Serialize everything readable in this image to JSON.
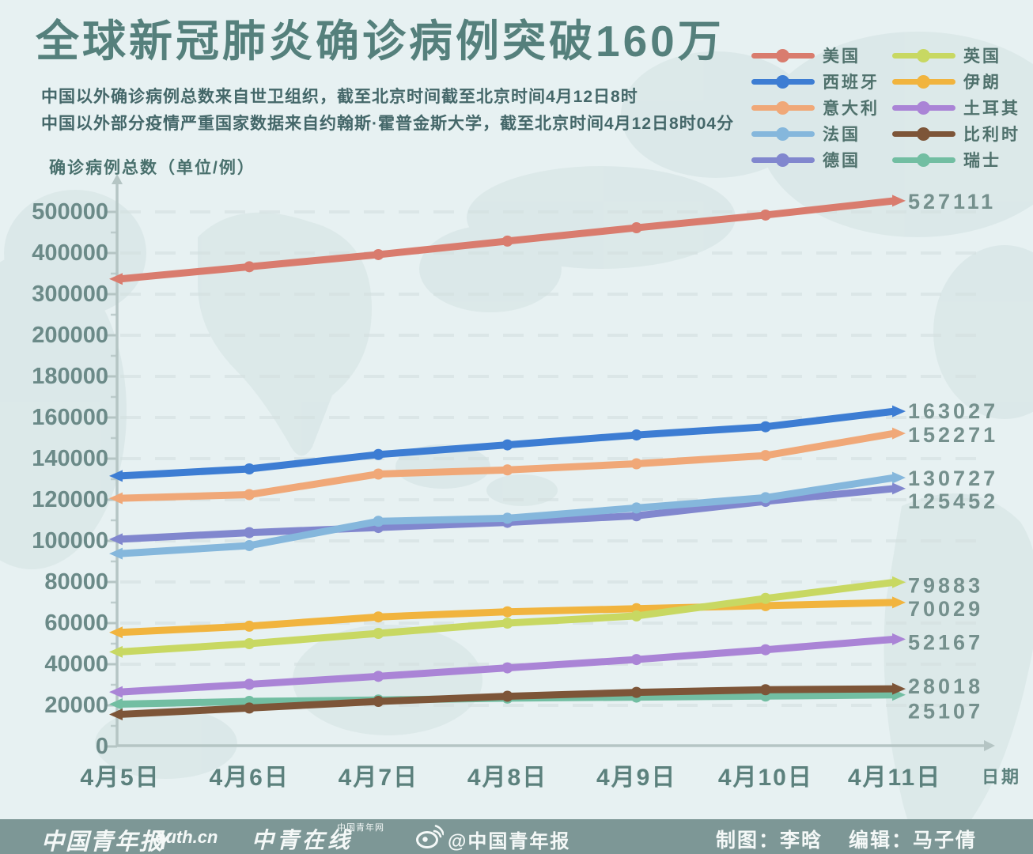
{
  "header": {
    "title": "全球新冠肺炎确诊病例突破160万",
    "subtitle_line1": "中国以外确诊病例总数来自世卫组织，截至北京时间截至北京时间4月12日8时",
    "subtitle_line2": "中国以外部分疫情严重国家数据来自约翰斯·霍普金斯大学，截至北京时间4月12日8时04分"
  },
  "colors": {
    "background": "#e7f1f2",
    "title": "#55807c",
    "axis_label": "#6b8a88",
    "x_label": "#5c817d",
    "end_label": "#75908d",
    "axis_line": "#b5c5c4",
    "gridline": "#d4e0e0",
    "footer_bar": "#7d9796"
  },
  "legend": {
    "items": [
      {
        "id": "usa",
        "label": "美国",
        "color": "#d97c6e"
      },
      {
        "id": "spain",
        "label": "西班牙",
        "color": "#3d7dd3"
      },
      {
        "id": "italy",
        "label": "意大利",
        "color": "#f0a878"
      },
      {
        "id": "france",
        "label": "法国",
        "color": "#85b7dc"
      },
      {
        "id": "germany",
        "label": "德国",
        "color": "#8187ce"
      },
      {
        "id": "uk",
        "label": "英国",
        "color": "#c8d862"
      },
      {
        "id": "iran",
        "label": "伊朗",
        "color": "#f1b43e"
      },
      {
        "id": "turkey",
        "label": "土耳其",
        "color": "#aa84d6"
      },
      {
        "id": "belgium",
        "label": "比利时",
        "color": "#7d5538"
      },
      {
        "id": "switzerland",
        "label": "瑞士",
        "color": "#72bea2"
      }
    ]
  },
  "chart_data": {
    "type": "line",
    "title": "全球新冠肺炎确诊病例突破160万",
    "ylabel": "确诊病例总数（单位/例）",
    "xlabel": "日期",
    "categories": [
      "4月5日",
      "4月6日",
      "4月7日",
      "4月8日",
      "4月9日",
      "4月10日",
      "4月11日"
    ],
    "y_ticks": [
      0,
      20000,
      40000,
      60000,
      80000,
      100000,
      120000,
      140000,
      160000,
      180000,
      200000,
      300000,
      400000,
      500000
    ],
    "y_scale_note": "piecewise linear: equal spacing per 20000 up to 200000, then per 100000 up to 500000",
    "grid": true,
    "legend_position": "top-right",
    "series": [
      {
        "id": "usa",
        "name": "美国",
        "color": "#d97c6e",
        "values": [
          337072,
          366667,
          396223,
          429052,
          461437,
          492416,
          527111
        ],
        "end_label": "527111"
      },
      {
        "id": "spain",
        "name": "西班牙",
        "color": "#3d7dd3",
        "values": [
          131600,
          135000,
          142000,
          146700,
          151500,
          155500,
          163027
        ],
        "end_label": "163027"
      },
      {
        "id": "italy",
        "name": "意大利",
        "color": "#f0a878",
        "values": [
          120700,
          122500,
          132500,
          134500,
          137500,
          141500,
          152271
        ],
        "end_label": "152271"
      },
      {
        "id": "france",
        "name": "法国",
        "color": "#85b7dc",
        "values": [
          93800,
          97700,
          109500,
          111000,
          116000,
          121000,
          130727
        ],
        "end_label": "130727"
      },
      {
        "id": "germany",
        "name": "德国",
        "color": "#8187ce",
        "values": [
          100800,
          104000,
          106500,
          109000,
          112200,
          119200,
          125452
        ],
        "end_label": "125452"
      },
      {
        "id": "uk",
        "name": "英国",
        "color": "#c8d862",
        "values": [
          46000,
          50000,
          55000,
          60000,
          63500,
          72000,
          79883
        ],
        "end_label": "79883"
      },
      {
        "id": "iran",
        "name": "伊朗",
        "color": "#f1b43e",
        "values": [
          55500,
          58500,
          63000,
          65500,
          67000,
          68500,
          70029
        ],
        "end_label": "70029"
      },
      {
        "id": "turkey",
        "name": "土耳其",
        "color": "#aa84d6",
        "values": [
          26500,
          30217,
          34109,
          38226,
          42282,
          47029,
          52167
        ],
        "end_label": "52167"
      },
      {
        "id": "belgium",
        "name": "比利时",
        "color": "#7d5538",
        "values": [
          15600,
          18700,
          21900,
          24400,
          26300,
          27600,
          28018
        ],
        "end_label": "28018"
      },
      {
        "id": "switzerland",
        "name": "瑞士",
        "color": "#72bea2",
        "values": [
          20600,
          21900,
          22600,
          23500,
          24000,
          24500,
          25107
        ],
        "end_label": "25107"
      }
    ]
  },
  "footer": {
    "logo_cyd": "中国青年报",
    "logo_youth_top": "中国青年网",
    "logo_youth_y": "Y",
    "logo_youth_rest": "outh.cn",
    "logo_zqzx": "中青在线",
    "weibo_handle": "@中国青年报",
    "credit_design": "制图：李晗",
    "credit_editor": "编辑：马子倩"
  }
}
